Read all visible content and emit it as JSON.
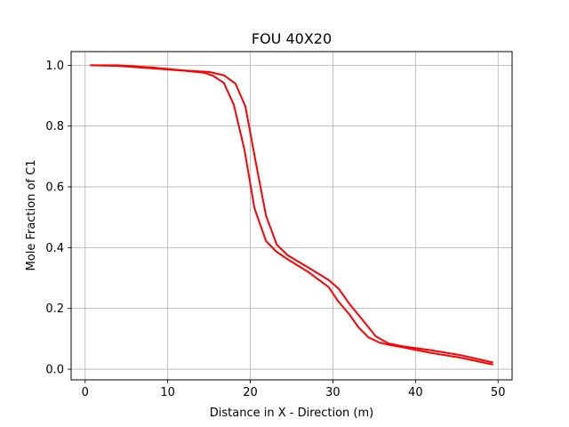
{
  "chart_data": {
    "type": "line",
    "title": "FOU 40X20",
    "xlabel": "Distance in X - Direction (m)",
    "ylabel": "Mole Fraction of C1",
    "xlim": [
      -1.7,
      51.7
    ],
    "ylim": [
      -0.035,
      1.045
    ],
    "xticks": [
      0,
      10,
      20,
      30,
      40,
      50
    ],
    "yticks": [
      0.0,
      0.2,
      0.4,
      0.6,
      0.8,
      1.0
    ],
    "xtick_labels": [
      "0",
      "10",
      "20",
      "30",
      "40",
      "50"
    ],
    "ytick_labels": [
      "0.0",
      "0.2",
      "0.4",
      "0.6",
      "0.8",
      "1.0"
    ],
    "grid": true,
    "legend": false,
    "series": [
      {
        "color": "#ff0000",
        "x": [
          0.6,
          4.0,
          8.0,
          12.0,
          15.0,
          16.8,
          18.2,
          19.4,
          20.6,
          21.9,
          23.2,
          24.5,
          27.0,
          29.5,
          30.7,
          32.0,
          33.6,
          35.2,
          36.7,
          38.5,
          42.0,
          45.5,
          49.4
        ],
        "y": [
          1.0,
          1.0,
          0.993,
          0.983,
          0.978,
          0.967,
          0.94,
          0.865,
          0.69,
          0.505,
          0.41,
          0.375,
          0.335,
          0.293,
          0.265,
          0.215,
          0.162,
          0.108,
          0.085,
          0.075,
          0.062,
          0.046,
          0.022
        ]
      },
      {
        "color": "#ff0000",
        "x": [
          0.6,
          4.0,
          8.0,
          12.0,
          14.5,
          15.5,
          16.8,
          18.0,
          19.3,
          20.5,
          21.9,
          23.1,
          24.5,
          27.0,
          29.5,
          30.6,
          32.0,
          33.1,
          34.3,
          35.6,
          36.8,
          38.3,
          42.0,
          45.5,
          49.4
        ],
        "y": [
          1.0,
          0.998,
          0.99,
          0.982,
          0.975,
          0.965,
          0.942,
          0.87,
          0.72,
          0.53,
          0.422,
          0.388,
          0.362,
          0.32,
          0.27,
          0.225,
          0.18,
          0.138,
          0.105,
          0.088,
          0.08,
          0.073,
          0.053,
          0.038,
          0.015
        ]
      }
    ]
  }
}
